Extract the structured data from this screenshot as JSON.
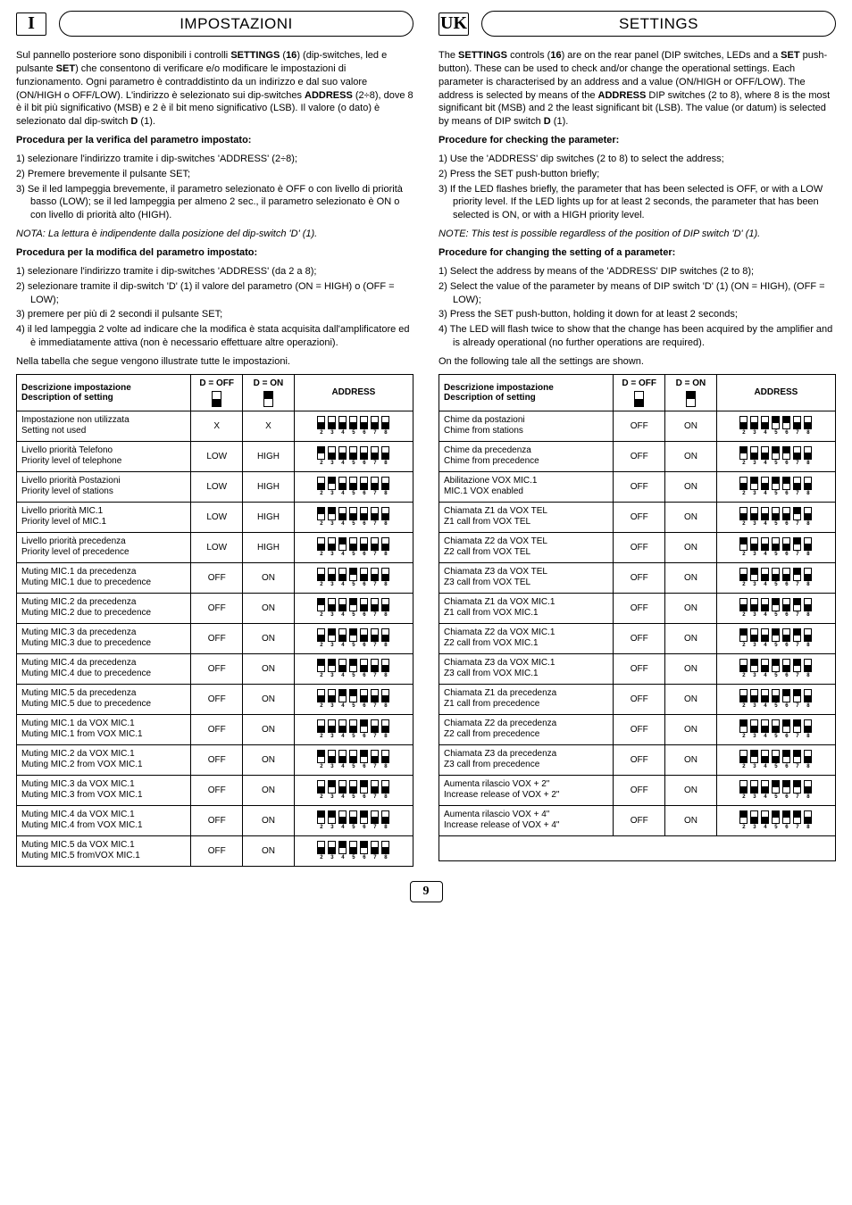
{
  "left": {
    "badge": "I",
    "title": "IMPOSTAZIONI",
    "para1": "Sul pannello posteriore sono disponibili i controlli <b>SETTINGS</b> (<b>16</b>) (dip-switches, led e pulsante <b>SET</b>) che consentono di verificare e/o modificare le impostazioni di funzionamento. Ogni parametro è contraddistinto da un indirizzo e dal suo valore (ON/HIGH o OFF/LOW). L'indirizzo è selezionato sui dip-switches <b>ADDRESS</b> (2÷8), dove 8 è il bit più significativo (MSB) e 2 è il bit meno significativo (LSB). Il valore (o dato) è selezionato dal dip-switch <b>D</b> (1).",
    "proc1_head": "Procedura per la verifica del parametro impostato:",
    "proc1": [
      "1) selezionare l'indirizzo tramite i dip-switches 'ADDRESS' (2÷8);",
      "2) Premere brevemente il pulsante SET;",
      "3) Se il led lampeggia brevemente, il parametro selezionato è OFF o con livello di priorità basso (LOW); se il led lampeggia per almeno 2 sec., il parametro selezionato è ON o con livello di priorità alto (HIGH)."
    ],
    "note1": "NOTA: La lettura è indipendente dalla posizione del dip-switch 'D' (1).",
    "proc2_head": "Procedura per la modifica del parametro impostato:",
    "proc2": [
      "1) selezionare l'indirizzo tramite i dip-switches 'ADDRESS' (da 2 a 8);",
      "2) selezionare tramite il dip-switch 'D' (1) il valore del parametro (ON = HIGH) o (OFF = LOW);",
      "3) premere per più di 2 secondi il pulsante SET;",
      "4) il led lampeggia 2 volte ad indicare che la modifica è stata acquisita dall'amplificatore ed è immediatamente attiva (non è necessario effettuare altre operazioni)."
    ],
    "caption": "Nella tabella che segue vengono illustrate tutte le impostazioni.",
    "th_desc1": "Descrizione impostazione",
    "th_desc2": "Description of setting",
    "th_off": "D = OFF",
    "th_on": "D = ON",
    "th_addr": "ADDRESS",
    "rows": [
      {
        "d1": "Impostazione non utilizzata",
        "d2": "Setting not used",
        "off": "X",
        "on": "X",
        "addr": "0000000"
      },
      {
        "d1": "Livello priorità Telefono",
        "d2": "Priority level of telephone",
        "off": "LOW",
        "on": "HIGH",
        "addr": "1000000"
      },
      {
        "d1": "Livello priorità Postazioni",
        "d2": "Priority level of stations",
        "off": "LOW",
        "on": "HIGH",
        "addr": "0100000"
      },
      {
        "d1": "Livello priorità MIC.1",
        "d2": "Priority level of MIC.1",
        "off": "LOW",
        "on": "HIGH",
        "addr": "1100000"
      },
      {
        "d1": "Livello priorità precedenza",
        "d2": "Priority level of precedence",
        "off": "LOW",
        "on": "HIGH",
        "addr": "0010000"
      },
      {
        "d1": "Muting MIC.1 da precedenza",
        "d2": "Muting MIC.1 due to precedence",
        "off": "OFF",
        "on": "ON",
        "addr": "0001000"
      },
      {
        "d1": "Muting MIC.2 da precedenza",
        "d2": "Muting MIC.2 due to precedence",
        "off": "OFF",
        "on": "ON",
        "addr": "1001000"
      },
      {
        "d1": "Muting MIC.3 da precedenza",
        "d2": "Muting MIC.3 due to precedence",
        "off": "OFF",
        "on": "ON",
        "addr": "0101000"
      },
      {
        "d1": "Muting MIC.4 da precedenza",
        "d2": "Muting MIC.4 due to precedence",
        "off": "OFF",
        "on": "ON",
        "addr": "1101000"
      },
      {
        "d1": "Muting MIC.5 da precedenza",
        "d2": "Muting MIC.5 due to precedence",
        "off": "OFF",
        "on": "ON",
        "addr": "0011000"
      },
      {
        "d1": "Muting MIC.1 da VOX MIC.1",
        "d2": "Muting MIC.1 from VOX MIC.1",
        "off": "OFF",
        "on": "ON",
        "addr": "0000100"
      },
      {
        "d1": "Muting MIC.2 da VOX MIC.1",
        "d2": "Muting MIC.2 from VOX MIC.1",
        "off": "OFF",
        "on": "ON",
        "addr": "1000100"
      },
      {
        "d1": "Muting MIC.3 da VOX MIC.1",
        "d2": "Muting MIC.3 from VOX MIC.1",
        "off": "OFF",
        "on": "ON",
        "addr": "0100100"
      },
      {
        "d1": "Muting MIC.4 da VOX MIC.1",
        "d2": "Muting MIC.4 from VOX MIC.1",
        "off": "OFF",
        "on": "ON",
        "addr": "1100100"
      },
      {
        "d1": "Muting MIC.5 da VOX MIC.1",
        "d2": "Muting MIC.5 fromVOX MIC.1",
        "off": "OFF",
        "on": "ON",
        "addr": "0010100"
      }
    ]
  },
  "right": {
    "badge": "UK",
    "title": "SETTINGS",
    "para1": "The <b>SETTINGS</b> controls (<b>16</b>) are on the rear panel (DIP switches, LEDs and a <b>SET</b> push-button). These can be used to check and/or change the operational settings. Each parameter is characterised by an address and a value (ON/HIGH or OFF/LOW). The address is selected by means of the <b>ADDRESS</b> DIP switches (2 to 8), where 8 is the most significant bit (MSB) and 2 the least significant bit (LSB). The value (or datum) is selected by means of DIP switch <b>D</b> (1).",
    "proc1_head": "Procedure for checking the parameter:",
    "proc1": [
      "1) Use the 'ADDRESS' dip switches (2 to 8) to select the address;",
      "2) Press the SET push-button briefly;",
      "3) If the LED flashes briefly, the parameter that has been selected is OFF, or with a LOW priority level. If the LED lights up for at least 2 seconds, the parameter that has been selected is ON, or with a HIGH priority level."
    ],
    "note1": "NOTE: This test is possible regardless of the position of DIP switch 'D' (1).",
    "proc2_head": "Procedure for changing the setting of a parameter:",
    "proc2": [
      "1) Select the address by means of the 'ADDRESS' DIP switches (2 to 8);",
      "2) Select the value of the parameter by means of DIP switch 'D' (1) (ON = HIGH), (OFF = LOW);",
      "3) Press the SET push-button, holding it down for at least 2 seconds;",
      "4) The LED will flash twice to show that the change has been acquired by the amplifier and is already operational (no further operations are required)."
    ],
    "caption": "On the following tale all the settings are shown.",
    "th_desc1": "Descrizione impostazione",
    "th_desc2": "Description of setting",
    "th_off": "D = OFF",
    "th_on": "D = ON",
    "th_addr": "ADDRESS",
    "rows": [
      {
        "d1": "Chime da postazioni",
        "d2": "Chime from stations",
        "off": "OFF",
        "on": "ON",
        "addr": "0001100"
      },
      {
        "d1": "Chime da precedenza",
        "d2": "Chime from precedence",
        "off": "OFF",
        "on": "ON",
        "addr": "1001100"
      },
      {
        "d1": "Abilitazione VOX MIC.1",
        "d2": "MIC.1 VOX enabled",
        "off": "OFF",
        "on": "ON",
        "addr": "0101100"
      },
      {
        "d1": "Chiamata Z1 da VOX TEL",
        "d2": "Z1 call from VOX TEL",
        "off": "OFF",
        "on": "ON",
        "addr": "0000010"
      },
      {
        "d1": "Chiamata Z2 da VOX TEL",
        "d2": "Z2 call from VOX TEL",
        "off": "OFF",
        "on": "ON",
        "addr": "1000010"
      },
      {
        "d1": "Chiamata Z3 da VOX TEL",
        "d2": "Z3 call from VOX TEL",
        "off": "OFF",
        "on": "ON",
        "addr": "0100010"
      },
      {
        "d1": "Chiamata Z1 da VOX MIC.1",
        "d2": "Z1 call from VOX MIC.1",
        "off": "OFF",
        "on": "ON",
        "addr": "0001010"
      },
      {
        "d1": "Chiamata Z2 da VOX MIC.1",
        "d2": "Z2 call from VOX MIC.1",
        "off": "OFF",
        "on": "ON",
        "addr": "1001010"
      },
      {
        "d1": "Chiamata Z3 da VOX MIC.1",
        "d2": "Z3 call from VOX MIC.1",
        "off": "OFF",
        "on": "ON",
        "addr": "0101010"
      },
      {
        "d1": "Chiamata Z1 da precedenza",
        "d2": "Z1 call from precedence",
        "off": "OFF",
        "on": "ON",
        "addr": "0000110"
      },
      {
        "d1": "Chiamata Z2 da precedenza",
        "d2": "Z2 call from precedence",
        "off": "OFF",
        "on": "ON",
        "addr": "1000110"
      },
      {
        "d1": "Chiamata Z3 da precedenza",
        "d2": "Z3 call from precedence",
        "off": "OFF",
        "on": "ON",
        "addr": "0100110"
      },
      {
        "d1": "Aumenta rilascio VOX + 2\"",
        "d2": "Increase release of VOX + 2\"",
        "off": "OFF",
        "on": "ON",
        "addr": "0001110"
      },
      {
        "d1": "Aumenta rilascio VOX + 4\"",
        "d2": "Increase release of VOX + 4\"",
        "off": "OFF",
        "on": "ON",
        "addr": "1001110"
      }
    ]
  },
  "page_number": "9"
}
